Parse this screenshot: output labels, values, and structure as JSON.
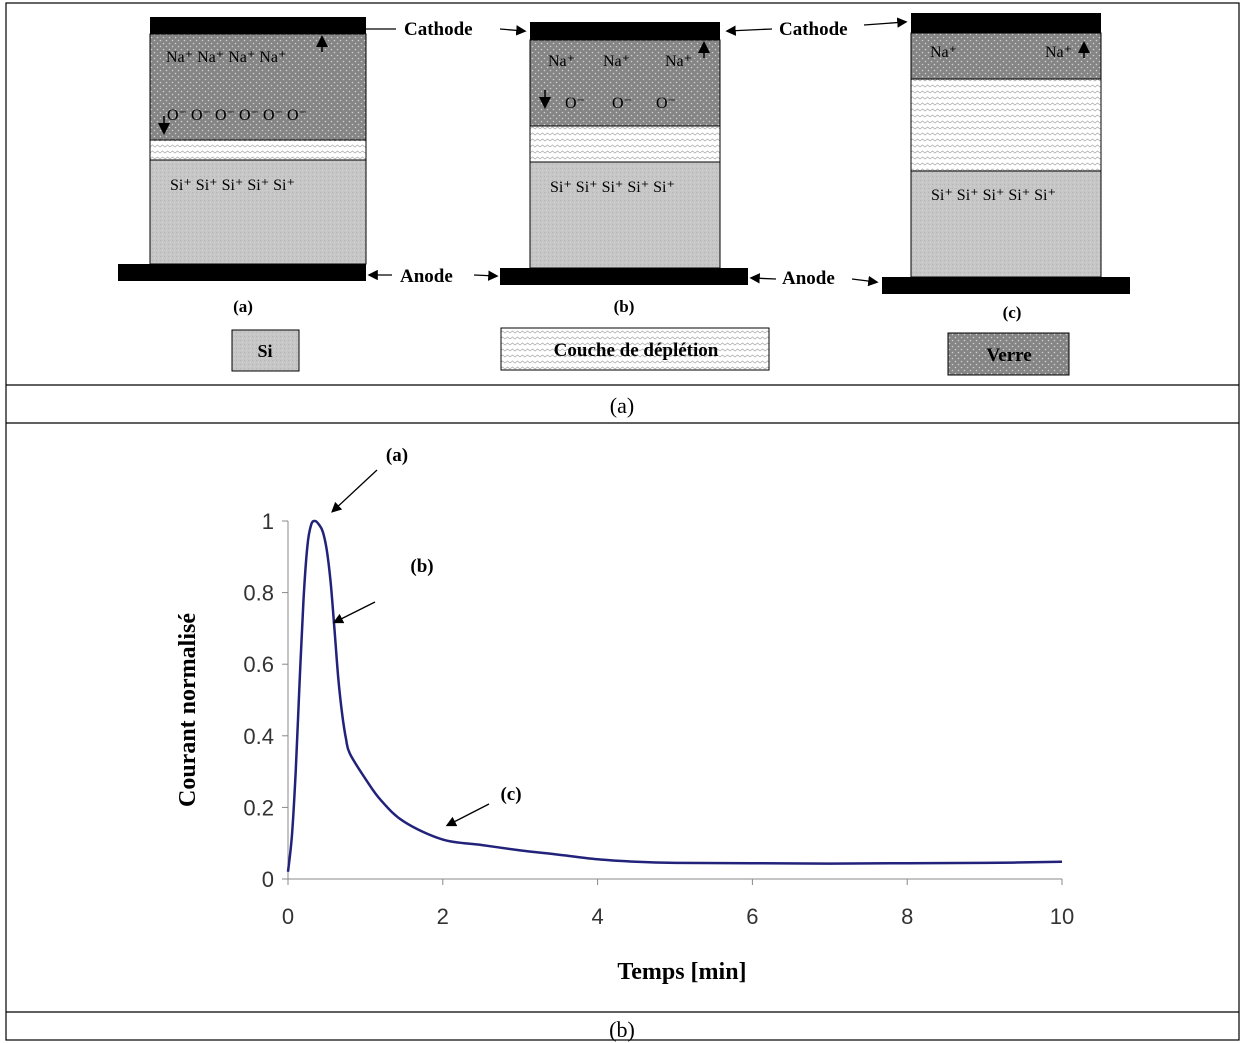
{
  "diagram": {
    "labels": {
      "cathode": "Cathode",
      "anode": "Anode"
    },
    "panels": [
      {
        "id": "a",
        "caption": "(a)",
        "top_ions": "Na⁺ Na⁺ Na⁺ Na⁺",
        "o_ions": "O⁻ O⁻ O⁻ O⁻ O⁻ O⁻",
        "si_ions": "Si⁺ Si⁺ Si⁺ Si⁺ Si⁺"
      },
      {
        "id": "b",
        "caption": "(b)",
        "top_ions": [
          "Na⁺",
          "Na⁺",
          "Na⁺"
        ],
        "o_ions": [
          "O⁻",
          "O⁻",
          "O⁻"
        ],
        "si_ions": "Si⁺ Si⁺ Si⁺ Si⁺ Si⁺"
      },
      {
        "id": "c",
        "caption": "(c)",
        "top_ions": [
          "Na⁺",
          "Na⁺"
        ],
        "si_ions": "Si⁺ Si⁺ Si⁺ Si⁺ Si⁺"
      }
    ],
    "legend": {
      "si": "Si",
      "depletion": "Couche de déplétion",
      "glass": "Verre"
    },
    "colors": {
      "glass": "#8a8a8a",
      "si": "#c8c8c8",
      "electrode": "#000000",
      "depletion": "#ffffff"
    },
    "caption": "(a)"
  },
  "chart_data": {
    "type": "line",
    "xlabel": "Temps [min]",
    "ylabel": "Courant normalisé",
    "xlim": [
      0,
      10
    ],
    "ylim": [
      0,
      1
    ],
    "xticks": [
      "0",
      "2",
      "4",
      "6",
      "8",
      "10"
    ],
    "yticks": [
      "0",
      "0.2",
      "0.4",
      "0.6",
      "0.8",
      "1"
    ],
    "line_color": "#22227a",
    "series": [
      {
        "x": [
          0,
          0.05,
          0.1,
          0.15,
          0.2,
          0.25,
          0.3,
          0.35,
          0.4,
          0.45,
          0.5,
          0.55,
          0.6,
          0.65,
          0.7,
          0.75,
          0.8,
          1.0,
          1.2,
          1.5,
          2.0,
          2.5,
          3.0,
          3.5,
          4.0,
          4.5,
          5.0,
          6.0,
          7.0,
          8.0,
          9.0,
          10.0
        ],
        "y": [
          0.02,
          0.12,
          0.3,
          0.55,
          0.78,
          0.93,
          0.99,
          1.0,
          0.99,
          0.97,
          0.92,
          0.83,
          0.7,
          0.56,
          0.46,
          0.39,
          0.35,
          0.28,
          0.22,
          0.16,
          0.11,
          0.095,
          0.08,
          0.068,
          0.055,
          0.048,
          0.045,
          0.044,
          0.043,
          0.044,
          0.045,
          0.048
        ]
      }
    ],
    "annotations": [
      "(a)",
      "(b)",
      "(c)"
    ]
  },
  "figure_caption": "(b)"
}
